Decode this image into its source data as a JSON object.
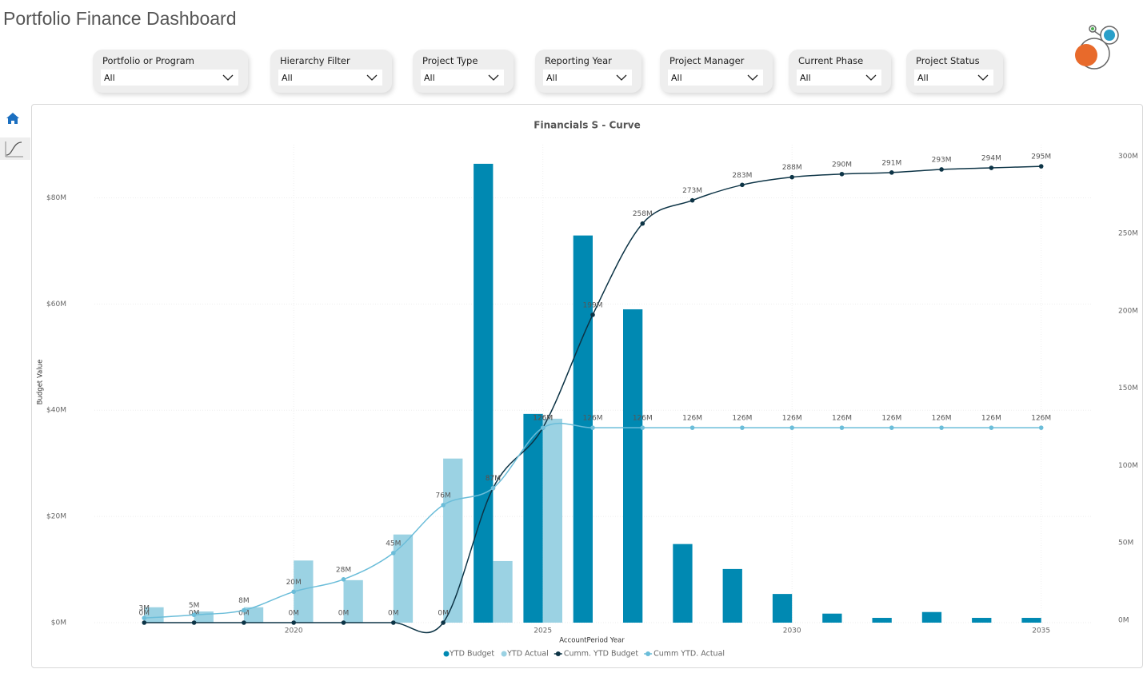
{
  "header": {
    "title": "Portfolio Finance Dashboard"
  },
  "filters": [
    {
      "label": "Portfolio or Program",
      "value": "All"
    },
    {
      "label": "Hierarchy Filter",
      "value": "All"
    },
    {
      "label": "Project Type",
      "value": "All"
    },
    {
      "label": "Reporting Year",
      "value": "All"
    },
    {
      "label": "Project Manager",
      "value": "All"
    },
    {
      "label": "Current Phase",
      "value": "All"
    },
    {
      "label": "Project Status",
      "value": "All"
    }
  ],
  "chart_data": {
    "type": "combo",
    "title": "Financials S - Curve",
    "x_label": "AccountPeriod Year",
    "y_label": "Budget Value",
    "x": [
      2017,
      2018,
      2019,
      2020,
      2021,
      2022,
      2023,
      2024,
      2025,
      2026,
      2027,
      2028,
      2029,
      2030,
      2031,
      2032,
      2033,
      2034,
      2035
    ],
    "xlim": [
      2016,
      2036
    ],
    "xticks": [
      2020,
      2025,
      2030,
      2035
    ],
    "ylim": [
      0,
      90
    ],
    "yticks": [
      {
        "value": 0,
        "label": "$0M"
      },
      {
        "value": 20,
        "label": "$20M"
      },
      {
        "value": 40,
        "label": "$40M"
      },
      {
        "value": 60,
        "label": "$60M"
      },
      {
        "value": 80,
        "label": "$80M"
      }
    ],
    "y2lim": [
      0,
      309
    ],
    "y2ticks": [
      {
        "value": 0,
        "label": "0M"
      },
      {
        "value": 50,
        "label": "50M"
      },
      {
        "value": 100,
        "label": "100M"
      },
      {
        "value": 150,
        "label": "150M"
      },
      {
        "value": 200,
        "label": "200M"
      },
      {
        "value": 250,
        "label": "250M"
      },
      {
        "value": 300,
        "label": "300M"
      }
    ],
    "grid": true,
    "legend": "bottom",
    "series": [
      {
        "name": "YTD Budget",
        "type": "bar",
        "color": "#0089b2",
        "values": [
          0,
          0,
          0,
          0,
          0,
          0,
          0,
          86.4,
          39.3,
          72.9,
          59.0,
          14.8,
          10.1,
          5.4,
          1.7,
          0.9,
          2.0,
          0.9,
          0.9
        ]
      },
      {
        "name": "YTD Actual",
        "type": "bar",
        "color": "#9bd2e3",
        "values": [
          2.9,
          2.1,
          2.9,
          11.7,
          8.0,
          16.6,
          30.9,
          11.6,
          38.4,
          0,
          0,
          0,
          0,
          0,
          0,
          0,
          0,
          0,
          0
        ]
      },
      {
        "name": "Cumm. YTD Budget",
        "type": "line",
        "axis": "y2",
        "color": "#0d3446",
        "values": [
          0,
          0,
          0,
          0,
          0,
          0,
          0,
          87,
          126,
          199,
          258,
          273,
          283,
          288,
          290,
          291,
          293,
          294,
          295
        ],
        "value_labels": [
          "0M",
          "0M",
          "0M",
          "0M",
          "0M",
          "0M",
          "0M",
          "87M",
          "126M",
          "199M",
          "258M",
          "273M",
          "283M",
          "288M",
          "290M",
          "291M",
          "293M",
          "294M",
          "295M"
        ]
      },
      {
        "name": "Cumm YTD. Actual",
        "type": "line",
        "axis": "y2",
        "color": "#6bbdd9",
        "values": [
          3,
          5,
          8,
          20,
          28,
          45,
          76,
          87,
          126,
          126,
          126,
          126,
          126,
          126,
          126,
          126,
          126,
          126,
          126
        ],
        "value_labels": [
          "3M",
          "5M",
          "8M",
          "20M",
          "28M",
          "45M",
          "76M",
          "87M",
          "126M",
          "126M",
          "126M",
          "126M",
          "126M",
          "126M",
          "126M",
          "126M",
          "126M",
          "126M",
          "126M"
        ]
      }
    ]
  }
}
